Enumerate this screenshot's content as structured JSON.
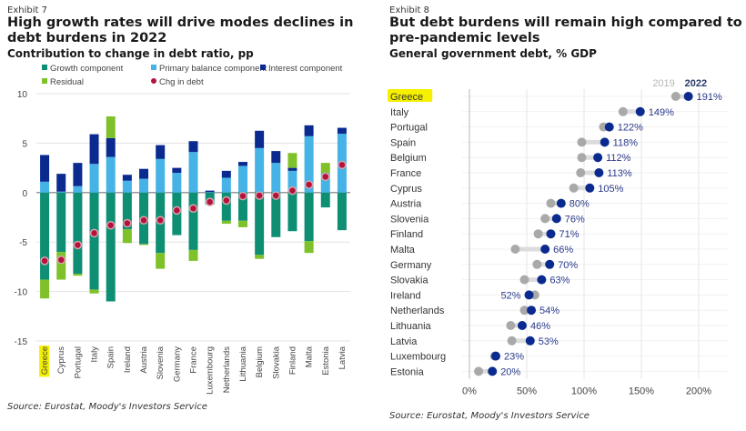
{
  "chart_data": [
    {
      "type": "bar",
      "stacked": true,
      "exhibit": "Exhibit 7",
      "title": "High growth rates will drive modes declines in debt burdens in 2022",
      "subtitle": "Contribution to change in debt ratio, pp",
      "source": "Source: Eurostat, Moody's Investors Service",
      "xlabel": "",
      "ylabel": "",
      "ylim": [
        -15,
        10
      ],
      "yticks": [
        10,
        5,
        0,
        -5,
        -10,
        -15
      ],
      "grid": true,
      "legend_position": "top",
      "highlight_category": "Greece",
      "categories": [
        "Greece",
        "Cyprus",
        "Portugal",
        "Italy",
        "Spain",
        "Ireland",
        "Austria",
        "Slovenia",
        "Germany",
        "France",
        "Luxembourg",
        "Netherlands",
        "Lithuania",
        "Belgium",
        "Slovakia",
        "Finland",
        "Malta",
        "Estonia",
        "Latvia"
      ],
      "series": [
        {
          "name": "Growth component",
          "color": "#0e8f74",
          "values": [
            -8.8,
            -6.0,
            -8.2,
            -9.8,
            -11.0,
            -3.7,
            -5.2,
            -6.1,
            -4.3,
            -5.8,
            -1.2,
            -2.85,
            -2.85,
            -6.3,
            -4.5,
            -3.9,
            -4.9,
            -1.5,
            -3.8
          ]
        },
        {
          "name": "Primary balance component",
          "color": "#45b3e6",
          "values": [
            1.1,
            0.1,
            0.65,
            2.9,
            3.6,
            1.2,
            1.4,
            3.4,
            2.0,
            4.1,
            0.05,
            1.5,
            2.7,
            4.5,
            3.0,
            2.2,
            5.7,
            2.0,
            5.95
          ]
        },
        {
          "name": "Interest component",
          "color": "#0a2a8f",
          "values": [
            2.7,
            1.8,
            2.35,
            3.0,
            1.9,
            0.6,
            1.0,
            1.4,
            0.5,
            1.1,
            0.15,
            0.7,
            0.4,
            1.75,
            1.2,
            0.3,
            1.1,
            0.0,
            0.6
          ]
        },
        {
          "name": "Residual",
          "color": "#7fc12a",
          "values": [
            -1.9,
            -2.8,
            -0.2,
            -0.4,
            2.2,
            -1.4,
            -0.1,
            -1.6,
            0.0,
            -1.1,
            0.0,
            -0.3,
            -0.65,
            -0.4,
            0.0,
            1.5,
            -1.2,
            1.0,
            0.0
          ]
        },
        {
          "name": "Chg in debt",
          "color": "#b3123c",
          "marker": "dot",
          "values": [
            -6.9,
            -6.8,
            -5.3,
            -4.1,
            -3.3,
            -3.1,
            -2.8,
            -2.8,
            -1.8,
            -1.6,
            -0.95,
            -0.8,
            -0.35,
            -0.3,
            -0.3,
            0.2,
            0.8,
            1.6,
            2.8
          ]
        }
      ]
    },
    {
      "type": "scatter",
      "subtype": "dumbbell",
      "exhibit": "Exhibit 8",
      "title": "But debt burdens will remain high compared to pre-pandemic levels",
      "subtitle": "General government debt, % GDP",
      "source": "Source: Eurostat, Moody's Investors Service",
      "xlabel": "",
      "ylabel": "",
      "xlim": [
        0,
        225
      ],
      "xticks": [
        "0%",
        "50%",
        "100%",
        "150%",
        "200%"
      ],
      "xtick_values": [
        0,
        50,
        100,
        150,
        200
      ],
      "grid": true,
      "legend_position": "top-right",
      "highlight_category": "Greece",
      "categories": [
        "Greece",
        "Italy",
        "Portugal",
        "Spain",
        "Belgium",
        "France",
        "Cyprus",
        "Austria",
        "Slovenia",
        "Finland",
        "Malta",
        "Germany",
        "Slovakia",
        "Ireland",
        "Netherlands",
        "Lithuania",
        "Latvia",
        "Luxembourg",
        "Estonia"
      ],
      "series": [
        {
          "name": "2019",
          "color": "#a9a9a9",
          "values": [
            180,
            134,
            117,
            98,
            98,
            97,
            91,
            71,
            66,
            60,
            40,
            59,
            48,
            57,
            48,
            36,
            37,
            22,
            8
          ]
        },
        {
          "name": "2022",
          "color": "#0a2a8f",
          "values": [
            191,
            149,
            122,
            118,
            112,
            113,
            105,
            80,
            76,
            71,
            66,
            70,
            63,
            52,
            54,
            46,
            53,
            23,
            20
          ]
        }
      ],
      "data_labels": [
        "191%",
        "149%",
        "122%",
        "118%",
        "112%",
        "113%",
        "105%",
        "80%",
        "76%",
        "71%",
        "66%",
        "70%",
        "63%",
        "52%",
        "54%",
        "46%",
        "53%",
        "23%",
        "20%"
      ]
    }
  ]
}
